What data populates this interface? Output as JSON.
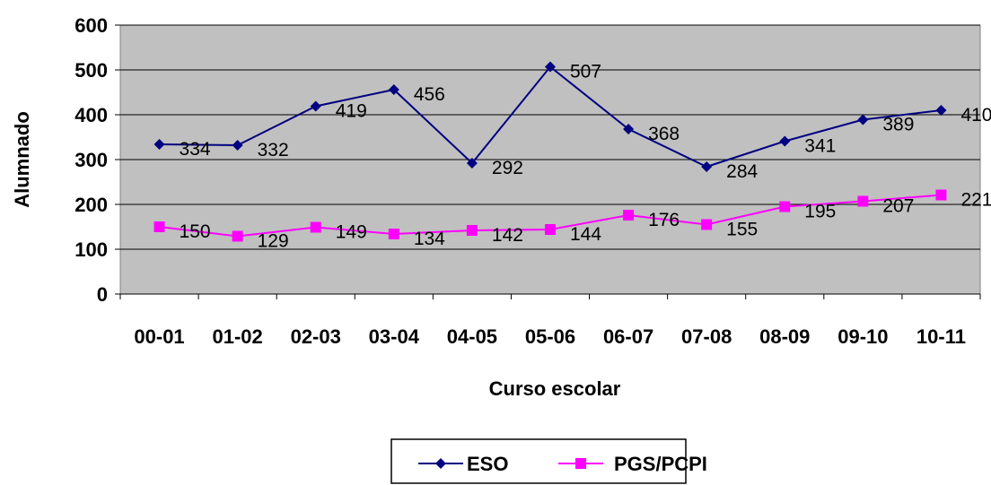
{
  "chart_data": {
    "type": "line",
    "title": "",
    "xlabel": "Curso escolar",
    "ylabel": "Alumnado",
    "ylim": [
      0,
      600
    ],
    "yticks": [
      "0",
      "100",
      "200",
      "300",
      "400",
      "500",
      "600"
    ],
    "categories": [
      "00-01",
      "01-02",
      "02-03",
      "03-04",
      "04-05",
      "05-06",
      "06-07",
      "07-08",
      "08-09",
      "09-10",
      "10-11"
    ],
    "series": [
      {
        "name": "ESO",
        "color": "#000080",
        "marker": "diamond",
        "values": [
          334,
          332,
          419,
          456,
          292,
          507,
          368,
          284,
          341,
          389,
          410
        ]
      },
      {
        "name": "PGS/PCPI",
        "color": "#FF00FF",
        "marker": "square",
        "values": [
          150,
          129,
          149,
          134,
          142,
          144,
          176,
          155,
          195,
          207,
          221
        ]
      }
    ],
    "plot_background": "#C0C0C0",
    "grid": true,
    "legend_position": "bottom"
  }
}
